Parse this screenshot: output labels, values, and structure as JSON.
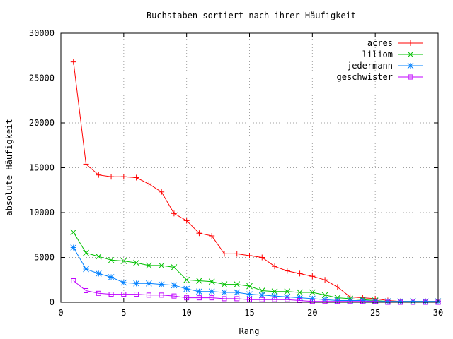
{
  "chart_data": {
    "type": "line",
    "title": "Buchstaben sortiert nach ihrer Häufigkeit",
    "xlabel": "Rang",
    "ylabel": "absolute Häufigkeit",
    "xlim": [
      0,
      30
    ],
    "ylim": [
      0,
      30000
    ],
    "xticks": [
      0,
      5,
      10,
      15,
      20,
      25,
      30
    ],
    "yticks": [
      0,
      5000,
      10000,
      15000,
      20000,
      25000,
      30000
    ],
    "grid": true,
    "legend_position": "top-right",
    "x": [
      1,
      2,
      3,
      4,
      5,
      6,
      7,
      8,
      9,
      10,
      11,
      12,
      13,
      14,
      15,
      16,
      17,
      18,
      19,
      20,
      21,
      22,
      23,
      24,
      25,
      26,
      27,
      28,
      29,
      30
    ],
    "series": [
      {
        "name": "acres",
        "color": "#ff0000",
        "marker": "plus",
        "values": [
          26800,
          15400,
          14200,
          14000,
          14000,
          13900,
          13200,
          12300,
          9900,
          9100,
          7700,
          7400,
          5400,
          5400,
          5200,
          5000,
          4000,
          3500,
          3200,
          2900,
          2500,
          1700,
          600,
          500,
          400,
          200,
          100,
          100,
          100,
          100
        ]
      },
      {
        "name": "liliom",
        "color": "#00c000",
        "marker": "cross",
        "values": [
          7800,
          5500,
          5100,
          4700,
          4600,
          4400,
          4100,
          4100,
          3900,
          2500,
          2400,
          2300,
          2000,
          2000,
          1800,
          1300,
          1200,
          1200,
          1100,
          1100,
          800,
          500,
          400,
          300,
          200,
          100,
          100,
          100,
          100,
          100
        ]
      },
      {
        "name": "jedermann",
        "color": "#0080ff",
        "marker": "star",
        "values": [
          6100,
          3700,
          3200,
          2800,
          2200,
          2100,
          2100,
          2000,
          1900,
          1500,
          1200,
          1200,
          1100,
          1100,
          900,
          800,
          700,
          600,
          500,
          400,
          300,
          200,
          200,
          200,
          100,
          100,
          100,
          100,
          100,
          100
        ]
      },
      {
        "name": "geschwister",
        "color": "#c000ff",
        "marker": "square",
        "values": [
          2400,
          1300,
          1000,
          900,
          900,
          900,
          800,
          800,
          700,
          500,
          500,
          500,
          400,
          400,
          300,
          300,
          300,
          300,
          200,
          100,
          100,
          100,
          100,
          100,
          100,
          0,
          0,
          0,
          0,
          0
        ]
      }
    ]
  }
}
